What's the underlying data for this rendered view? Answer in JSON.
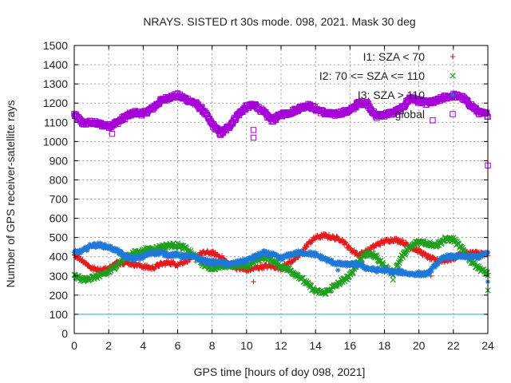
{
  "chart_data": {
    "type": "scatter",
    "title": "NRAYS. SISTED rt 30s mode. 098, 2021. Mask 30 deg",
    "xlabel": "GPS time [hours of doy 098, 2021]",
    "ylabel": "Number of GPS receiver-satellite rays",
    "xlim": [
      0,
      24
    ],
    "ylim": [
      0,
      1500
    ],
    "xticks": [
      0,
      2,
      4,
      6,
      8,
      10,
      12,
      14,
      16,
      18,
      20,
      22,
      24
    ],
    "yticks": [
      0,
      100,
      200,
      300,
      400,
      500,
      600,
      700,
      800,
      900,
      1000,
      1100,
      1200,
      1300,
      1400,
      1500
    ],
    "grid": true,
    "legend_position": "top-right",
    "threshold": {
      "name": "threshold line",
      "value": 100,
      "color": "#00c8d2"
    },
    "series": [
      {
        "name": "global",
        "marker": "square",
        "color": "#a500d6",
        "points": [
          [
            0,
            1140
          ],
          [
            0.5,
            1095
          ],
          [
            1,
            1100
          ],
          [
            1.5,
            1090
          ],
          [
            2,
            1080
          ],
          [
            2.5,
            1100
          ],
          [
            3,
            1130
          ],
          [
            3.5,
            1150
          ],
          [
            4,
            1145
          ],
          [
            4.5,
            1170
          ],
          [
            5,
            1210
          ],
          [
            5.5,
            1230
          ],
          [
            6,
            1240
          ],
          [
            6.5,
            1220
          ],
          [
            7,
            1200
          ],
          [
            7.5,
            1160
          ],
          [
            8,
            1090
          ],
          [
            8.5,
            1040
          ],
          [
            9,
            1080
          ],
          [
            9.5,
            1140
          ],
          [
            10,
            1180
          ],
          [
            10.5,
            1190
          ],
          [
            11,
            1150
          ],
          [
            11.5,
            1110
          ],
          [
            12,
            1140
          ],
          [
            12.5,
            1150
          ],
          [
            13,
            1170
          ],
          [
            13.5,
            1190
          ],
          [
            14,
            1170
          ],
          [
            14.5,
            1150
          ],
          [
            15,
            1140
          ],
          [
            15.5,
            1150
          ],
          [
            16,
            1160
          ],
          [
            16.5,
            1200
          ],
          [
            17,
            1200
          ],
          [
            17.5,
            1130
          ],
          [
            18,
            1140
          ],
          [
            18.5,
            1150
          ],
          [
            19,
            1170
          ],
          [
            19.5,
            1230
          ],
          [
            20,
            1210
          ],
          [
            20.5,
            1200
          ],
          [
            21,
            1210
          ],
          [
            21.5,
            1230
          ],
          [
            22,
            1240
          ],
          [
            22.5,
            1230
          ],
          [
            23,
            1190
          ],
          [
            23.5,
            1150
          ],
          [
            24,
            1140
          ]
        ],
        "outliers": [
          [
            2.2,
            1040
          ],
          [
            10.4,
            1020
          ],
          [
            10.4,
            1060
          ],
          [
            20.8,
            1110
          ],
          [
            24,
            875
          ]
        ]
      },
      {
        "name": "I1: SZA < 70",
        "marker": "plus",
        "color": "#e41a1c",
        "points": [
          [
            0,
            410
          ],
          [
            0.5,
            380
          ],
          [
            1,
            340
          ],
          [
            1.5,
            330
          ],
          [
            2,
            340
          ],
          [
            2.5,
            370
          ],
          [
            3,
            370
          ],
          [
            3.5,
            360
          ],
          [
            4,
            350
          ],
          [
            4.5,
            340
          ],
          [
            5,
            360
          ],
          [
            5.5,
            370
          ],
          [
            6,
            360
          ],
          [
            6.5,
            380
          ],
          [
            7,
            400
          ],
          [
            7.5,
            420
          ],
          [
            8,
            420
          ],
          [
            8.5,
            400
          ],
          [
            9,
            360
          ],
          [
            9.5,
            340
          ],
          [
            10,
            330
          ],
          [
            10.5,
            340
          ],
          [
            11,
            350
          ],
          [
            11.5,
            350
          ],
          [
            12,
            340
          ],
          [
            12.5,
            370
          ],
          [
            13,
            400
          ],
          [
            13.5,
            460
          ],
          [
            14,
            500
          ],
          [
            14.5,
            510
          ],
          [
            15,
            500
          ],
          [
            15.5,
            490
          ],
          [
            16,
            440
          ],
          [
            16.5,
            410
          ],
          [
            17,
            430
          ],
          [
            17.5,
            460
          ],
          [
            18,
            480
          ],
          [
            18.5,
            490
          ],
          [
            19,
            480
          ],
          [
            19.5,
            450
          ],
          [
            20,
            430
          ],
          [
            20.5,
            400
          ],
          [
            21,
            380
          ],
          [
            21.5,
            380
          ],
          [
            22,
            390
          ],
          [
            22.5,
            420
          ],
          [
            23,
            420
          ],
          [
            23.5,
            420
          ],
          [
            24,
            410
          ]
        ],
        "outliers": [
          [
            10.4,
            270
          ],
          [
            20.7,
            300
          ]
        ]
      },
      {
        "name": "I2: 70 <= SZA <= 110",
        "marker": "cross",
        "color": "#1f9e1f",
        "points": [
          [
            0,
            300
          ],
          [
            0.5,
            280
          ],
          [
            1,
            290
          ],
          [
            1.5,
            300
          ],
          [
            2,
            320
          ],
          [
            2.5,
            360
          ],
          [
            3,
            400
          ],
          [
            3.5,
            420
          ],
          [
            4,
            430
          ],
          [
            4.5,
            440
          ],
          [
            5,
            450
          ],
          [
            5.5,
            460
          ],
          [
            6,
            460
          ],
          [
            6.5,
            440
          ],
          [
            7,
            400
          ],
          [
            7.5,
            360
          ],
          [
            8,
            340
          ],
          [
            8.5,
            350
          ],
          [
            9,
            360
          ],
          [
            9.5,
            350
          ],
          [
            10,
            350
          ],
          [
            10.5,
            380
          ],
          [
            11,
            400
          ],
          [
            11.5,
            380
          ],
          [
            12,
            350
          ],
          [
            12.5,
            330
          ],
          [
            13,
            300
          ],
          [
            13.5,
            260
          ],
          [
            14,
            220
          ],
          [
            14.5,
            210
          ],
          [
            15,
            240
          ],
          [
            15.5,
            270
          ],
          [
            16,
            300
          ],
          [
            16.5,
            380
          ],
          [
            17,
            420
          ],
          [
            17.5,
            400
          ],
          [
            18,
            350
          ],
          [
            18.5,
            310
          ],
          [
            19,
            400
          ],
          [
            19.5,
            450
          ],
          [
            20,
            480
          ],
          [
            20.5,
            470
          ],
          [
            21,
            460
          ],
          [
            21.5,
            490
          ],
          [
            22,
            490
          ],
          [
            22.5,
            440
          ],
          [
            23,
            380
          ],
          [
            23.5,
            340
          ],
          [
            24,
            310
          ]
        ],
        "outliers": [
          [
            18.5,
            280
          ],
          [
            24,
            225
          ]
        ]
      },
      {
        "name": "I3: SZA > 110",
        "marker": "star",
        "color": "#1e78d7",
        "points": [
          [
            0,
            420
          ],
          [
            0.5,
            430
          ],
          [
            1,
            460
          ],
          [
            1.5,
            460
          ],
          [
            2,
            450
          ],
          [
            2.5,
            430
          ],
          [
            3,
            400
          ],
          [
            3.5,
            390
          ],
          [
            4,
            400
          ],
          [
            4.5,
            420
          ],
          [
            5,
            420
          ],
          [
            5.5,
            410
          ],
          [
            6,
            410
          ],
          [
            6.5,
            400
          ],
          [
            7,
            400
          ],
          [
            7.5,
            380
          ],
          [
            8,
            370
          ],
          [
            8.5,
            370
          ],
          [
            9,
            360
          ],
          [
            9.5,
            370
          ],
          [
            10,
            380
          ],
          [
            10.5,
            400
          ],
          [
            11,
            420
          ],
          [
            11.5,
            410
          ],
          [
            12,
            390
          ],
          [
            12.5,
            410
          ],
          [
            13,
            420
          ],
          [
            13.5,
            420
          ],
          [
            14,
            410
          ],
          [
            14.5,
            390
          ],
          [
            15,
            370
          ],
          [
            15.5,
            360
          ],
          [
            16,
            360
          ],
          [
            16.5,
            360
          ],
          [
            17,
            340
          ],
          [
            17.5,
            330
          ],
          [
            18,
            330
          ],
          [
            18.5,
            320
          ],
          [
            19,
            320
          ],
          [
            19.5,
            310
          ],
          [
            20,
            310
          ],
          [
            20.5,
            310
          ],
          [
            21,
            360
          ],
          [
            21.5,
            400
          ],
          [
            22,
            400
          ],
          [
            22.5,
            400
          ],
          [
            23,
            400
          ],
          [
            23.5,
            400
          ],
          [
            24,
            420
          ]
        ],
        "outliers": [
          [
            15.3,
            330
          ],
          [
            24,
            270
          ]
        ]
      }
    ]
  }
}
